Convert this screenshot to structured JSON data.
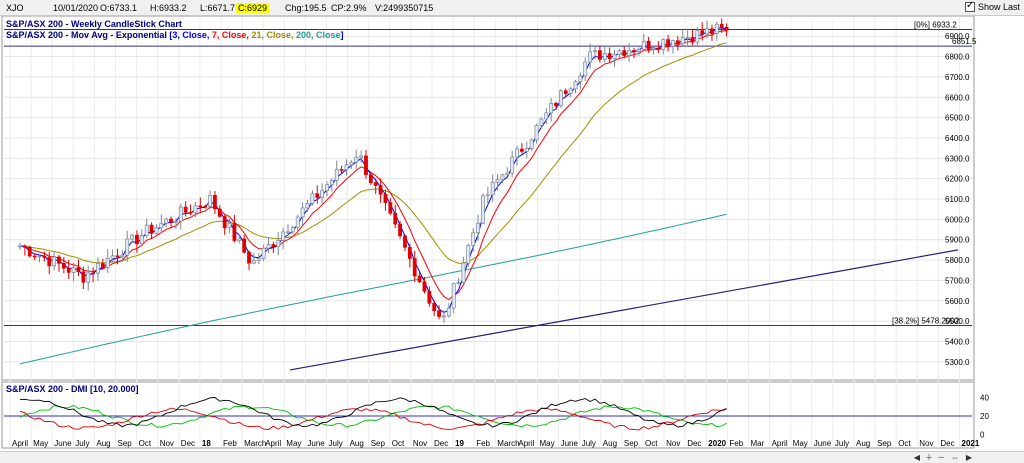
{
  "header": {
    "symbol": "XJO",
    "date": "10/01/2020",
    "open": "O:6733.1",
    "high": "H:6933.2",
    "low": "L:6671.7",
    "close": "C:6929",
    "change": "Chg:195.5",
    "change_pct": "CP:2.9%",
    "volume": "V:2499350715",
    "show_last_label": "Show Last"
  },
  "legend": {
    "title": "S&P/ASX 200 - Weekly CandleStick Chart",
    "mov_avg_prefix": "S&P/ASX 200 - Mov Avg - Exponential",
    "mov_avg_open": "[",
    "p1": "3, Close,",
    "p2": "7, Close,",
    "p3": "21, Close,",
    "p4": "200, Close",
    "mov_avg_close": "]"
  },
  "annotations": {
    "fib_top": "[0%] 6933.2",
    "level_6851": "6851.5",
    "fib_382": "[38.2%] 5478.2002"
  },
  "dmi": {
    "label": "S&P/ASX 200 - DMI [10, 20.000]",
    "ticks": [
      "40",
      "20",
      "0"
    ]
  },
  "colors": {
    "up": "#1f6fd0",
    "down": "#e00000",
    "ema3": "#0000ff",
    "ema7": "#ff0000",
    "ema21": "#a09000",
    "ema200": "#20a0a0",
    "trend": "#202080",
    "plus_di": "#00c000",
    "minus_di": "#e00000",
    "adx": "#000000"
  },
  "chart_data": {
    "type": "candlestick",
    "title": "S&P/ASX 200 - Weekly CandleStick Chart",
    "ylim": [
      5250,
      6960
    ],
    "y_ticks": [
      "6900.0",
      "6800.0",
      "6700.0",
      "6600.0",
      "6500.0",
      "6400.0",
      "6300.0",
      "6200.0",
      "6100.0",
      "6000.0",
      "5900.0",
      "5800.0",
      "5700.0",
      "5600.0",
      "5500.0",
      "5400.0",
      "5300.0"
    ],
    "x_labels": [
      "April",
      "May",
      "June",
      "July",
      "Aug",
      "Sep",
      "Oct",
      "Nov",
      "Dec",
      "18",
      "Feb",
      "March",
      "April",
      "May",
      "June",
      "July",
      "Aug",
      "Sep",
      "Oct",
      "Nov",
      "Dec",
      "19",
      "Feb",
      "March",
      "April",
      "May",
      "June",
      "July",
      "Aug",
      "Sep",
      "Oct",
      "Nov",
      "Dec",
      "2020",
      "Feb",
      "Mar",
      "April",
      "May",
      "June",
      "July",
      "Aug",
      "Sep",
      "Oct",
      "Nov",
      "Dec",
      "2021"
    ],
    "key_closes": [
      {
        "period": "Apr 2017",
        "value": 5870
      },
      {
        "period": "Jul 2017",
        "value": 5720
      },
      {
        "period": "Oct 2017",
        "value": 5940
      },
      {
        "period": "Jan 2018",
        "value": 6100
      },
      {
        "period": "Mar 2018",
        "value": 5780
      },
      {
        "period": "Aug 2018",
        "value": 6330
      },
      {
        "period": "Dec 2018",
        "value": 5480
      },
      {
        "period": "Feb 2019",
        "value": 6100
      },
      {
        "period": "Jul 2019",
        "value": 6800
      },
      {
        "period": "Jan 2020",
        "value": 6929
      }
    ],
    "horizontal_levels": [
      6933.2,
      6851.5,
      5478.2002
    ],
    "trend_line": {
      "from": {
        "period": "Nov 2017",
        "value": 5260
      },
      "to": {
        "period": "Nov 2020",
        "value": 5850
      }
    },
    "dmi_range": [
      -10,
      50
    ]
  }
}
